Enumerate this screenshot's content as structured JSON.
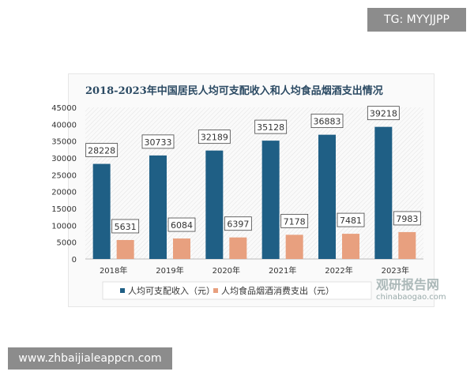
{
  "badge": "TG: MYYJJPP",
  "url": "www.zhbaijialeappcn.com",
  "watermark": {
    "name": "观研报告网",
    "site": "chinabaogao.com"
  },
  "colors": {
    "income": "#1f5f85",
    "expense": "#e8a07f"
  },
  "chart_data": {
    "type": "bar",
    "title": "2018-2023年中国居民人均可支配收入和人均食品烟酒支出情况",
    "categories": [
      "2018年",
      "2019年",
      "2020年",
      "2021年",
      "2022年",
      "2023年"
    ],
    "series": [
      {
        "name": "人均可支配收入（元）",
        "values": [
          28228,
          30733,
          32189,
          35128,
          36883,
          39218
        ]
      },
      {
        "name": "人均食品烟酒消费支出（元）",
        "values": [
          5631,
          6084,
          6397,
          7178,
          7481,
          7983
        ]
      }
    ],
    "ylim": [
      0,
      45000
    ],
    "yticks": [
      0,
      5000,
      10000,
      15000,
      20000,
      25000,
      30000,
      35000,
      40000,
      45000
    ],
    "legend": "bottom",
    "grid": false
  }
}
